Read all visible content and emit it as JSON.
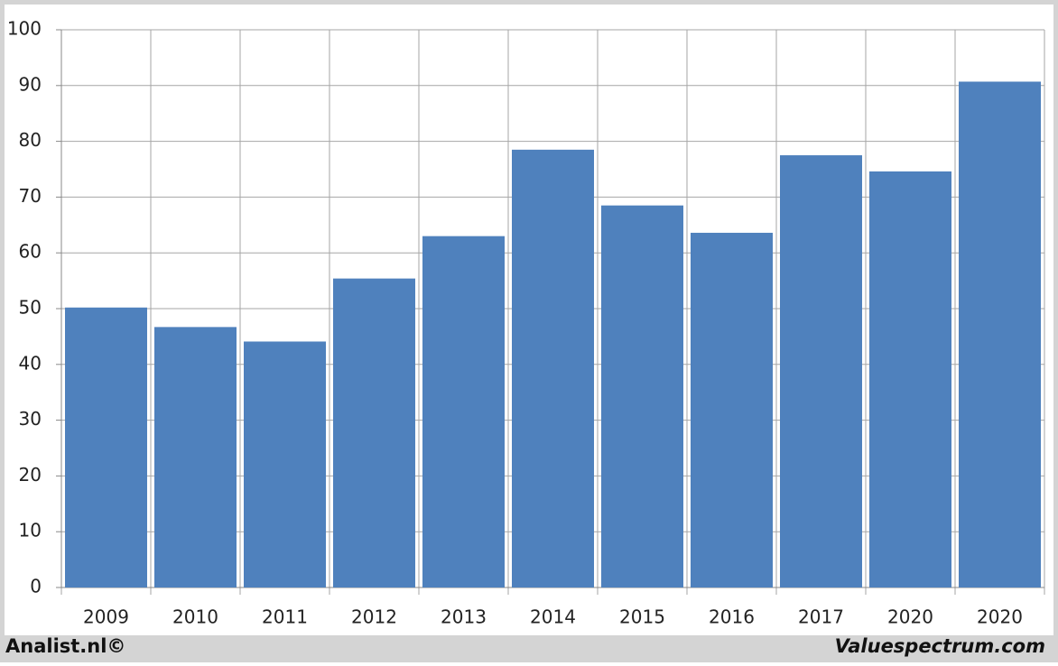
{
  "chart_data": {
    "type": "bar",
    "categories": [
      "2009",
      "2010",
      "2011",
      "2012",
      "2013",
      "2014",
      "2015",
      "2016",
      "2017",
      "2020",
      "2020"
    ],
    "values": [
      50.2,
      46.7,
      44.1,
      55.4,
      63,
      78.5,
      68.5,
      63.6,
      77.5,
      74.6,
      90.7
    ],
    "color": "#4f81bd",
    "ylim": [
      0,
      100
    ],
    "yticks": [
      0,
      10,
      20,
      30,
      40,
      50,
      60,
      70,
      80,
      90,
      100
    ],
    "grid": true
  },
  "footer": {
    "left": "Analist.nl©",
    "right": "Valuespectrum.com"
  }
}
